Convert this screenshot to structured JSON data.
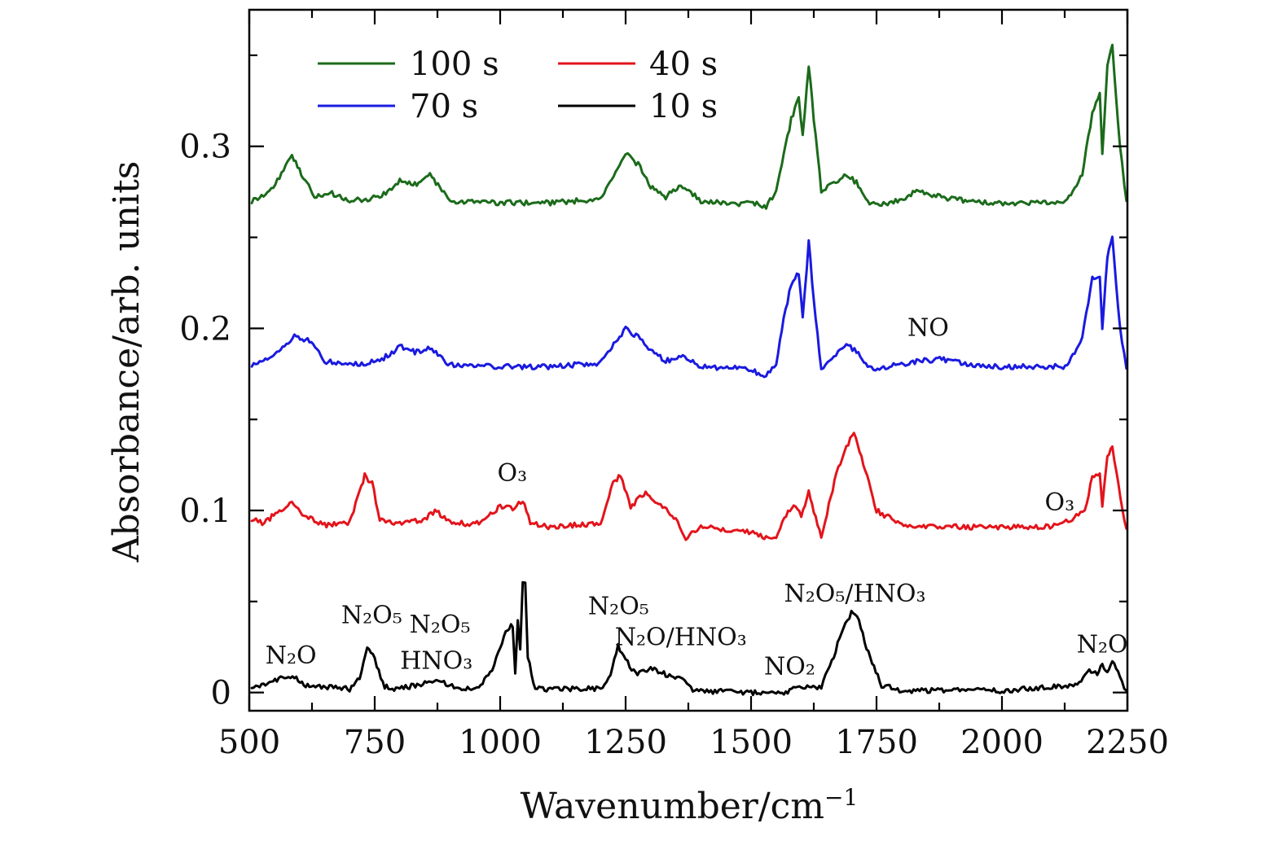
{
  "chart_data": {
    "type": "line",
    "title": "",
    "xlabel": "Wavenumber/cm",
    "xlabel_superscript": "−1",
    "ylabel": "Absorbance/arb. units",
    "xlim": [
      500,
      2250
    ],
    "ylim": [
      -0.01,
      0.375
    ],
    "xticks": [
      500,
      750,
      1000,
      1250,
      1500,
      1750,
      2000,
      2250
    ],
    "xtick_labels": [
      "500",
      "750",
      "1000",
      "1250",
      "1500",
      "1750",
      "2000",
      "2250"
    ],
    "yticks": [
      0,
      0.1,
      0.2,
      0.3
    ],
    "ytick_labels": [
      "0",
      "0.1",
      "0.2",
      "0.3"
    ],
    "legend": [
      {
        "name": "100 s",
        "color": "#1b6b1b"
      },
      {
        "name": "40 s",
        "color": "#e3141b"
      },
      {
        "name": "70 s",
        "color": "#1a1ae0"
      },
      {
        "name": "10 s",
        "color": "#000000"
      }
    ],
    "legend_position": "top-left",
    "series": [
      {
        "name": "100 s",
        "color": "#1b6b1b",
        "x": [
          505,
          540,
          560,
          585,
          600,
          630,
          665,
          700,
          760,
          800,
          830,
          860,
          900,
          1000,
          1100,
          1200,
          1230,
          1250,
          1275,
          1300,
          1330,
          1360,
          1400,
          1480,
          1500,
          1530,
          1550,
          1565,
          1580,
          1595,
          1603,
          1615,
          1625,
          1640,
          1665,
          1690,
          1710,
          1740,
          1800,
          1830,
          1880,
          1950,
          2050,
          2130,
          2160,
          2180,
          2195,
          2200,
          2210,
          2220,
          2235,
          2248
        ],
        "y": [
          0.27,
          0.275,
          0.283,
          0.295,
          0.287,
          0.272,
          0.274,
          0.27,
          0.272,
          0.281,
          0.279,
          0.284,
          0.27,
          0.269,
          0.269,
          0.271,
          0.285,
          0.296,
          0.29,
          0.278,
          0.272,
          0.279,
          0.27,
          0.268,
          0.269,
          0.267,
          0.275,
          0.295,
          0.315,
          0.327,
          0.305,
          0.345,
          0.315,
          0.276,
          0.28,
          0.285,
          0.28,
          0.268,
          0.27,
          0.276,
          0.272,
          0.269,
          0.269,
          0.27,
          0.285,
          0.318,
          0.33,
          0.295,
          0.345,
          0.355,
          0.3,
          0.27
        ]
      },
      {
        "name": "70 s",
        "color": "#1a1ae0",
        "x": [
          505,
          540,
          570,
          590,
          620,
          650,
          700,
          760,
          800,
          830,
          860,
          900,
          1000,
          1100,
          1200,
          1230,
          1250,
          1275,
          1300,
          1330,
          1360,
          1400,
          1480,
          1500,
          1530,
          1550,
          1565,
          1580,
          1595,
          1603,
          1615,
          1625,
          1640,
          1665,
          1690,
          1710,
          1740,
          1800,
          1830,
          1880,
          1950,
          2050,
          2130,
          2160,
          2180,
          2195,
          2200,
          2210,
          2220,
          2235,
          2248
        ],
        "y": [
          0.18,
          0.184,
          0.19,
          0.196,
          0.193,
          0.182,
          0.18,
          0.182,
          0.19,
          0.187,
          0.189,
          0.18,
          0.179,
          0.179,
          0.181,
          0.193,
          0.2,
          0.195,
          0.188,
          0.182,
          0.185,
          0.179,
          0.178,
          0.177,
          0.174,
          0.18,
          0.205,
          0.225,
          0.23,
          0.205,
          0.248,
          0.215,
          0.178,
          0.185,
          0.192,
          0.187,
          0.178,
          0.18,
          0.182,
          0.183,
          0.179,
          0.179,
          0.179,
          0.195,
          0.228,
          0.228,
          0.2,
          0.24,
          0.25,
          0.2,
          0.178
        ]
      },
      {
        "name": "40 s",
        "color": "#e3141b",
        "x": [
          505,
          530,
          560,
          585,
          610,
          650,
          700,
          720,
          730,
          745,
          760,
          800,
          850,
          870,
          900,
          950,
          1000,
          1025,
          1045,
          1060,
          1100,
          1200,
          1225,
          1240,
          1260,
          1290,
          1320,
          1350,
          1370,
          1400,
          1500,
          1530,
          1550,
          1570,
          1585,
          1600,
          1615,
          1625,
          1640,
          1670,
          1690,
          1705,
          1720,
          1750,
          1800,
          1900,
          2000,
          2100,
          2140,
          2165,
          2180,
          2195,
          2200,
          2210,
          2220,
          2240,
          2248
        ],
        "y": [
          0.095,
          0.093,
          0.1,
          0.104,
          0.097,
          0.092,
          0.093,
          0.11,
          0.119,
          0.115,
          0.095,
          0.093,
          0.095,
          0.1,
          0.094,
          0.092,
          0.102,
          0.101,
          0.106,
          0.093,
          0.091,
          0.093,
          0.115,
          0.12,
          0.102,
          0.11,
          0.103,
          0.095,
          0.085,
          0.091,
          0.088,
          0.085,
          0.086,
          0.098,
          0.104,
          0.097,
          0.11,
          0.1,
          0.086,
          0.12,
          0.135,
          0.143,
          0.13,
          0.1,
          0.092,
          0.091,
          0.091,
          0.091,
          0.095,
          0.1,
          0.118,
          0.12,
          0.102,
          0.13,
          0.134,
          0.1,
          0.09
        ]
      },
      {
        "name": "10 s",
        "color": "#000000",
        "x": [
          505,
          540,
          570,
          590,
          620,
          660,
          700,
          720,
          735,
          750,
          770,
          800,
          850,
          880,
          920,
          950,
          980,
          1000,
          1015,
          1025,
          1030,
          1035,
          1040,
          1045,
          1050,
          1055,
          1070,
          1100,
          1200,
          1220,
          1235,
          1250,
          1270,
          1300,
          1330,
          1360,
          1380,
          1400,
          1500,
          1550,
          1600,
          1640,
          1665,
          1680,
          1700,
          1715,
          1730,
          1760,
          1800,
          1900,
          2000,
          2100,
          2150,
          2170,
          2190,
          2200,
          2210,
          2220,
          2235,
          2248
        ],
        "y": [
          0.003,
          0.005,
          0.009,
          0.008,
          0.003,
          0.003,
          0.002,
          0.008,
          0.026,
          0.018,
          0.003,
          0.002,
          0.005,
          0.006,
          0.002,
          0.002,
          0.01,
          0.025,
          0.035,
          0.037,
          0.01,
          0.04,
          0.025,
          0.06,
          0.06,
          0.02,
          0.002,
          0.002,
          0.002,
          0.01,
          0.026,
          0.018,
          0.01,
          0.013,
          0.01,
          0.008,
          0.002,
          0.001,
          0.0,
          -0.001,
          0.003,
          0.003,
          0.02,
          0.033,
          0.044,
          0.04,
          0.025,
          0.004,
          0.001,
          0.001,
          0.001,
          0.003,
          0.004,
          0.012,
          0.011,
          0.015,
          0.012,
          0.018,
          0.008,
          0.001
        ]
      }
    ],
    "annotations": [
      {
        "text": "N₂O",
        "x": 583,
        "y": 0.016
      },
      {
        "text": "N₂O₅",
        "x": 744,
        "y": 0.038
      },
      {
        "text": "N₂O₅",
        "x": 880,
        "y": 0.033
      },
      {
        "text": "HNO₃",
        "x": 873,
        "y": 0.013
      },
      {
        "text": "N₂O₅",
        "x": 1236,
        "y": 0.043
      },
      {
        "text": "N₂O/HNO₃",
        "x": 1360,
        "y": 0.026
      },
      {
        "text": "NO₂",
        "x": 1577,
        "y": 0.01
      },
      {
        "text": "N₂O₅/HNO₃",
        "x": 1707,
        "y": 0.05
      },
      {
        "text": "N₂O",
        "x": 2200,
        "y": 0.022
      },
      {
        "text": "O₃",
        "x": 1024,
        "y": 0.116
      },
      {
        "text": "O₃",
        "x": 2115,
        "y": 0.1
      },
      {
        "text": "NO",
        "x": 1853,
        "y": 0.196
      }
    ]
  }
}
